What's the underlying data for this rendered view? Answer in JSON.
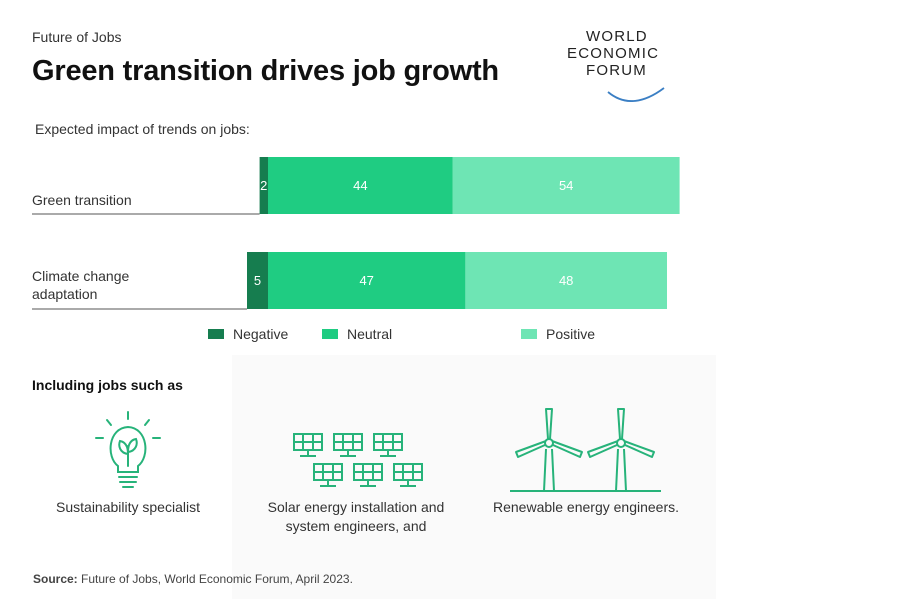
{
  "header": {
    "kicker": "Future of Jobs",
    "title": "Green transition drives job growth",
    "logo_lines": [
      "WORLD",
      "ECONOMIC",
      "FORUM"
    ]
  },
  "chart_data": {
    "type": "bar",
    "orientation": "horizontal",
    "stacked": true,
    "subtitle": "Expected impact of trends on jobs:",
    "categories": [
      "Green transition",
      "Climate change adaptation"
    ],
    "category_lines": [
      [
        "Green transition"
      ],
      [
        "Climate change",
        "adaptation"
      ]
    ],
    "series": [
      {
        "name": "Negative",
        "values": [
          2,
          5
        ],
        "color": "#167d4f"
      },
      {
        "name": "Neutral",
        "values": [
          44,
          47
        ],
        "color": "#1fcc82"
      },
      {
        "name": "Positive",
        "values": [
          54,
          48
        ],
        "color": "#6ee5b4"
      }
    ],
    "legend_position": "bottom",
    "grid": false
  },
  "examples": {
    "title": "Including jobs such as",
    "items": [
      {
        "icon": "lightbulb-icon",
        "lines": [
          "Sustainability specialist"
        ]
      },
      {
        "icon": "solar-panels-icon",
        "lines": [
          "Solar energy installation and",
          "system engineers, and"
        ]
      },
      {
        "icon": "wind-turbines-icon",
        "lines": [
          "Renewable energy engineers."
        ]
      }
    ]
  },
  "footer": {
    "source_label": "Source:",
    "source_text": " Future of Jobs, World Economic Forum, April 2023."
  },
  "colors": {
    "negative": "#167d4f",
    "neutral": "#1fcc82",
    "positive": "#6ee5b4",
    "icon": "#27b37a",
    "logo_arc": "#3b7fc4"
  }
}
